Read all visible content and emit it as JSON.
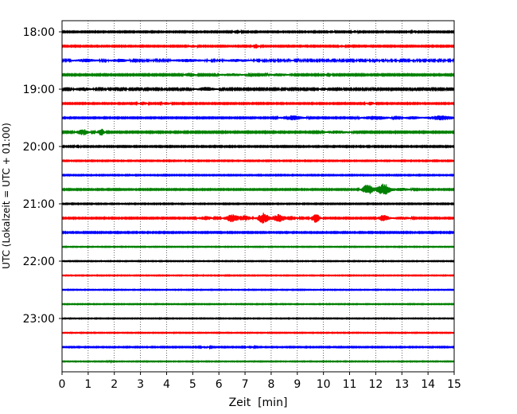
{
  "chart_data": {
    "type": "line",
    "title": "",
    "xlabel": "Zeit  [min]",
    "ylabel": "UTC (Lokalzeit = UTC + 01:00)",
    "xlim": [
      0,
      15
    ],
    "x_ticks": [
      0,
      1,
      2,
      3,
      4,
      5,
      6,
      7,
      8,
      9,
      10,
      11,
      12,
      13,
      14,
      15
    ],
    "x_tick_labels": [
      "0",
      "1",
      "2",
      "3",
      "4",
      "5",
      "6",
      "7",
      "8",
      "9",
      "10",
      "11",
      "12",
      "13",
      "14",
      "15"
    ],
    "y_tick_labels": [
      "18:00",
      "19:00",
      "20:00",
      "21:00",
      "22:00",
      "23:00"
    ],
    "vertical_grid": "dotted, at every minute",
    "trace_interval_minutes": 15,
    "trace_colors": [
      "#000000",
      "#ff0000",
      "#0000ff",
      "#008000"
    ],
    "traces": [
      {
        "start": "18:00",
        "noise": 0.6,
        "events": [
          [
            6.7,
            0.12,
            2.0
          ],
          [
            10.3,
            0.1,
            1.5
          ],
          [
            11.2,
            0.1,
            1.5
          ],
          [
            13.5,
            0.1,
            1.5
          ]
        ]
      },
      {
        "start": "18:15",
        "noise": 0.6,
        "events": [
          [
            5.0,
            0.15,
            1.3
          ],
          [
            7.4,
            0.12,
            2.5
          ],
          [
            10.7,
            0.1,
            1.2
          ]
        ]
      },
      {
        "start": "18:30",
        "noise": 0.9,
        "events": [
          [
            0.9,
            0.35,
            1.5
          ],
          [
            2.2,
            0.25,
            1.5
          ],
          [
            4.8,
            0.5,
            1.2
          ],
          [
            6.7,
            0.4,
            1.0
          ]
        ]
      },
      {
        "start": "18:45",
        "noise": 0.7,
        "events": [
          [
            4.9,
            0.2,
            2.0
          ],
          [
            6.5,
            0.4,
            1.3
          ],
          [
            8.3,
            0.3,
            1.5
          ],
          [
            10.2,
            0.1,
            2.0
          ]
        ]
      },
      {
        "start": "19:00",
        "noise": 0.8,
        "events": [
          [
            0.8,
            0.25,
            2.0
          ],
          [
            5.5,
            0.3,
            2.0
          ],
          [
            10.0,
            0.1,
            2.0
          ]
        ]
      },
      {
        "start": "19:15",
        "noise": 0.6,
        "events": [
          [
            3.1,
            0.15,
            1.8
          ],
          [
            4.0,
            0.15,
            1.5
          ],
          [
            11.8,
            0.15,
            1.8
          ]
        ]
      },
      {
        "start": "19:30",
        "noise": 0.6,
        "events": [
          [
            8.8,
            0.4,
            2.5
          ],
          [
            12.0,
            0.5,
            2.0
          ],
          [
            13.4,
            0.3,
            1.5
          ],
          [
            14.5,
            0.5,
            2.5
          ]
        ]
      },
      {
        "start": "19:45",
        "noise": 0.7,
        "events": [
          [
            0.8,
            0.2,
            3.5
          ],
          [
            1.5,
            0.12,
            4.0
          ],
          [
            10.5,
            0.4,
            1.5
          ]
        ]
      },
      {
        "start": "20:00",
        "noise": 0.6,
        "events": [
          [
            0.6,
            0.08,
            2.0
          ]
        ]
      },
      {
        "start": "20:15",
        "noise": 0.5,
        "events": []
      },
      {
        "start": "20:30",
        "noise": 0.5,
        "events": []
      },
      {
        "start": "20:45",
        "noise": 0.6,
        "events": [
          [
            11.7,
            0.2,
            6.0
          ],
          [
            12.3,
            0.25,
            7.0
          ],
          [
            13.0,
            0.3,
            1.5
          ]
        ]
      },
      {
        "start": "21:00",
        "noise": 0.5,
        "events": []
      },
      {
        "start": "21:15",
        "noise": 0.6,
        "events": [
          [
            5.5,
            0.25,
            2.0
          ],
          [
            6.5,
            0.25,
            4.5
          ],
          [
            7.0,
            0.2,
            3.0
          ],
          [
            7.7,
            0.2,
            6.5
          ],
          [
            8.3,
            0.25,
            4.5
          ],
          [
            8.8,
            0.2,
            2.0
          ],
          [
            9.7,
            0.15,
            5.5
          ],
          [
            12.3,
            0.2,
            3.5
          ],
          [
            13.0,
            0.3,
            1.5
          ]
        ]
      },
      {
        "start": "21:30",
        "noise": 0.6,
        "events": []
      },
      {
        "start": "21:45",
        "noise": 0.4,
        "events": []
      },
      {
        "start": "22:00",
        "noise": 0.4,
        "events": []
      },
      {
        "start": "22:15",
        "noise": 0.4,
        "events": []
      },
      {
        "start": "22:30",
        "noise": 0.4,
        "events": []
      },
      {
        "start": "22:45",
        "noise": 0.4,
        "events": []
      },
      {
        "start": "23:00",
        "noise": 0.4,
        "events": []
      },
      {
        "start": "23:15",
        "noise": 0.4,
        "events": []
      },
      {
        "start": "23:30",
        "noise": 0.5,
        "events": [
          [
            5.5,
            0.15,
            1.3
          ],
          [
            7.2,
            0.15,
            1.3
          ]
        ]
      },
      {
        "start": "23:45",
        "noise": 0.4,
        "events": [
          [
            1.8,
            0.05,
            2.0
          ]
        ]
      }
    ]
  }
}
